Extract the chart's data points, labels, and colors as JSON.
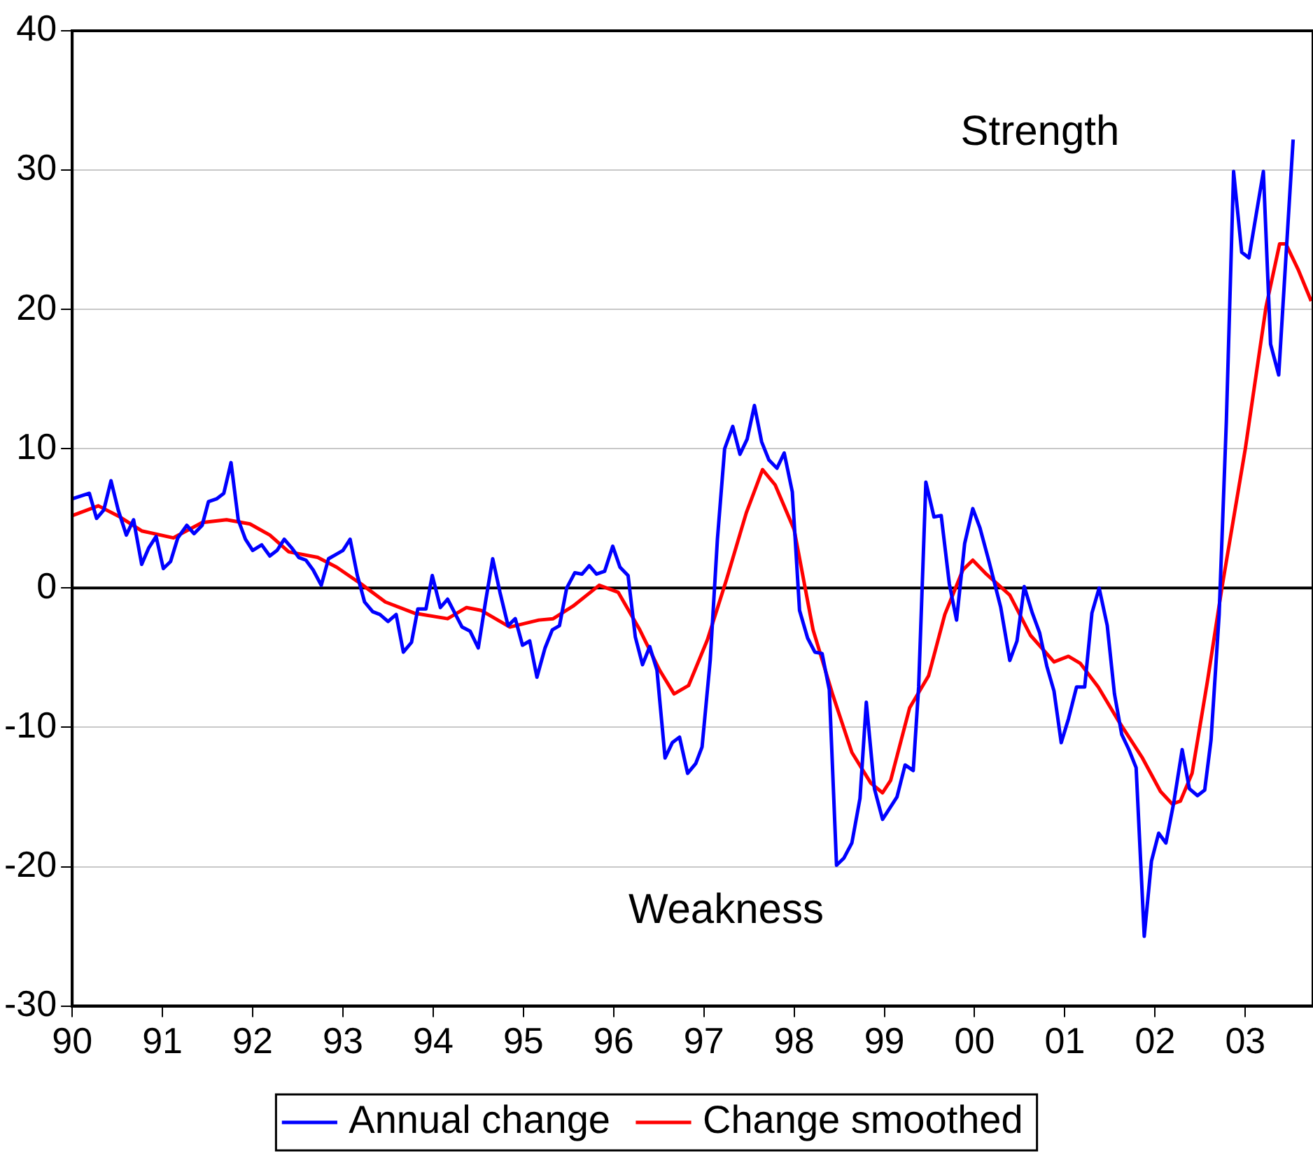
{
  "chart_data": {
    "type": "line",
    "xlim": [
      1990,
      2003.75
    ],
    "xticks": [
      {
        "value": 1990,
        "label": "90"
      },
      {
        "value": 1991,
        "label": "91"
      },
      {
        "value": 1992,
        "label": "92"
      },
      {
        "value": 1993,
        "label": "93"
      },
      {
        "value": 1994,
        "label": "94"
      },
      {
        "value": 1995,
        "label": "95"
      },
      {
        "value": 1996,
        "label": "96"
      },
      {
        "value": 1997,
        "label": "97"
      },
      {
        "value": 1998,
        "label": "98"
      },
      {
        "value": 1999,
        "label": "99"
      },
      {
        "value": 2000,
        "label": "00"
      },
      {
        "value": 2001,
        "label": "01"
      },
      {
        "value": 2002,
        "label": "02"
      },
      {
        "value": 2003,
        "label": "03"
      }
    ],
    "ylim": [
      -30,
      40
    ],
    "yticks": [
      -30,
      -20,
      -10,
      0,
      10,
      20,
      30,
      40
    ],
    "grid": "y",
    "legend": "bottom",
    "marker": "none",
    "line_style": "solid",
    "ref_lines": [
      {
        "axis": "y",
        "value": 0,
        "color": "#000000"
      }
    ],
    "annotations": [
      "Strength",
      "Weakness"
    ],
    "series": [
      {
        "name": "Annual change",
        "color": "#0000ff",
        "x": [
          1990.0,
          1990.19,
          1990.27,
          1990.35,
          1990.43,
          1990.51,
          1990.6,
          1990.68,
          1990.77,
          1990.85,
          1990.93,
          1991.01,
          1991.09,
          1991.17,
          1991.27,
          1991.35,
          1991.44,
          1991.51,
          1991.6,
          1991.68,
          1991.76,
          1991.84,
          1991.92,
          1992.0,
          1992.1,
          1992.19,
          1992.27,
          1992.35,
          1992.43,
          1992.51,
          1992.59,
          1992.67,
          1992.76,
          1992.84,
          1992.92,
          1993.0,
          1993.08,
          1993.16,
          1993.24,
          1993.33,
          1993.41,
          1993.5,
          1993.59,
          1993.67,
          1993.76,
          1993.83,
          1993.92,
          1993.99,
          1994.08,
          1994.16,
          1994.24,
          1994.32,
          1994.41,
          1994.5,
          1994.58,
          1994.66,
          1994.74,
          1994.83,
          1994.91,
          1994.99,
          1995.07,
          1995.15,
          1995.24,
          1995.32,
          1995.4,
          1995.48,
          1995.57,
          1995.65,
          1995.73,
          1995.81,
          1995.9,
          1995.99,
          1996.07,
          1996.16,
          1996.24,
          1996.32,
          1996.4,
          1996.48,
          1996.57,
          1996.65,
          1996.73,
          1996.82,
          1996.91,
          1996.98,
          1997.07,
          1997.15,
          1997.23,
          1997.32,
          1997.4,
          1997.48,
          1997.56,
          1997.64,
          1997.72,
          1997.81,
          1997.89,
          1997.98,
          1998.06,
          1998.15,
          1998.23,
          1998.31,
          1998.39,
          1998.47,
          1998.55,
          1998.64,
          1998.73,
          1998.8,
          1998.89,
          1998.98,
          1999.06,
          1999.14,
          1999.23,
          1999.32,
          1999.38,
          1999.46,
          1999.55,
          1999.63,
          1999.72,
          1999.8,
          1999.89,
          1999.98,
          2000.06,
          2000.16,
          2000.29,
          2000.39,
          2000.47,
          2000.55,
          2000.64,
          2000.72,
          2000.8,
          2000.88,
          2000.96,
          2001.04,
          2001.13,
          2001.22,
          2001.3,
          2001.38,
          2001.47,
          2001.55,
          2001.63,
          2001.71,
          2001.79,
          2001.88,
          2001.96,
          2002.04,
          2002.12,
          2002.21,
          2002.3,
          2002.38,
          2002.47,
          2002.55,
          2002.62,
          2002.71,
          2002.79,
          2002.87,
          2002.96,
          2003.04,
          2003.12,
          2003.2,
          2003.28,
          2003.37,
          2003.53
        ],
        "values": [
          6.4,
          6.8,
          5.0,
          5.6,
          7.7,
          5.6,
          3.8,
          4.9,
          1.7,
          2.9,
          3.7,
          1.4,
          1.9,
          3.6,
          4.5,
          3.9,
          4.5,
          6.2,
          6.4,
          6.8,
          9.0,
          4.9,
          3.5,
          2.7,
          3.1,
          2.3,
          2.7,
          3.5,
          2.9,
          2.2,
          2.0,
          1.3,
          0.2,
          2.1,
          2.4,
          2.7,
          3.5,
          0.9,
          -1.0,
          -1.7,
          -1.9,
          -2.4,
          -1.9,
          -4.6,
          -3.9,
          -1.5,
          -1.5,
          0.9,
          -1.4,
          -0.8,
          -1.8,
          -2.8,
          -3.1,
          -4.3,
          -1.0,
          2.1,
          -0.3,
          -2.7,
          -2.2,
          -4.1,
          -3.8,
          -6.4,
          -4.3,
          -3.0,
          -2.7,
          0.0,
          1.1,
          1.0,
          1.6,
          1.0,
          1.2,
          3.0,
          1.5,
          0.9,
          -3.5,
          -5.5,
          -4.2,
          -5.9,
          -12.2,
          -11.1,
          -10.7,
          -13.3,
          -12.6,
          -11.4,
          -5.2,
          3.5,
          10.0,
          11.6,
          9.6,
          10.7,
          13.1,
          10.5,
          9.2,
          8.6,
          9.7,
          6.9,
          -1.6,
          -3.6,
          -4.6,
          -4.7,
          -7.3,
          -19.9,
          -19.4,
          -18.3,
          -15.1,
          -8.2,
          -14.4,
          -16.6,
          -15.8,
          -15.0,
          -12.7,
          -13.1,
          -7.1,
          7.6,
          5.1,
          5.2,
          0.3,
          -2.3,
          3.2,
          5.7,
          4.3,
          1.9,
          -1.4,
          -5.2,
          -3.8,
          0.1,
          -1.8,
          -3.2,
          -5.6,
          -7.4,
          -11.1,
          -9.4,
          -7.1,
          -7.1,
          -1.8,
          0.0,
          -2.7,
          -7.6,
          -10.5,
          -11.6,
          -12.9,
          -25.0,
          -19.6,
          -17.6,
          -18.3,
          -15.3,
          -11.6,
          -14.4,
          -14.9,
          -14.5,
          -10.9,
          -1.9,
          12.0,
          29.9,
          24.1,
          23.7,
          26.8,
          29.9,
          17.5,
          15.3,
          32.2
        ]
      },
      {
        "name": "Change smoothed",
        "color": "#ff0000",
        "x": [
          1990.0,
          1990.29,
          1990.53,
          1990.77,
          1991.12,
          1991.44,
          1991.71,
          1991.97,
          1992.19,
          1992.4,
          1992.72,
          1992.93,
          1993.2,
          1993.47,
          1993.79,
          1994.16,
          1994.37,
          1994.53,
          1994.85,
          1995.17,
          1995.33,
          1995.55,
          1995.84,
          1996.05,
          1996.29,
          1996.51,
          1996.67,
          1996.83,
          1997.04,
          1997.25,
          1997.47,
          1997.65,
          1997.79,
          1998.0,
          1998.21,
          1998.43,
          1998.64,
          1998.85,
          1998.98,
          1999.07,
          1999.28,
          1999.49,
          1999.67,
          1999.87,
          1999.98,
          2000.13,
          2000.39,
          2000.62,
          2000.88,
          2001.04,
          2001.17,
          2001.37,
          2001.6,
          2001.86,
          2002.06,
          2002.19,
          2002.28,
          2002.41,
          2002.58,
          2002.74,
          2003.0,
          2003.23,
          2003.38,
          2003.45,
          2003.59,
          2003.73
        ],
        "values": [
          5.2,
          5.9,
          5.1,
          4.1,
          3.6,
          4.7,
          4.9,
          4.6,
          3.8,
          2.6,
          2.2,
          1.5,
          0.3,
          -1.0,
          -1.8,
          -2.2,
          -1.4,
          -1.6,
          -2.8,
          -2.3,
          -2.2,
          -1.3,
          0.2,
          -0.3,
          -3.0,
          -5.9,
          -7.6,
          -7.0,
          -3.7,
          0.6,
          5.4,
          8.5,
          7.4,
          4.2,
          -3.0,
          -7.7,
          -11.8,
          -14.0,
          -14.7,
          -13.8,
          -8.6,
          -6.3,
          -1.9,
          1.3,
          2.0,
          1.0,
          -0.5,
          -3.4,
          -5.3,
          -4.9,
          -5.4,
          -7.1,
          -9.6,
          -12.2,
          -14.6,
          -15.5,
          -15.3,
          -13.3,
          -6.7,
          0.0,
          10.0,
          20.2,
          24.7,
          24.7,
          22.8,
          20.6
        ]
      }
    ]
  }
}
